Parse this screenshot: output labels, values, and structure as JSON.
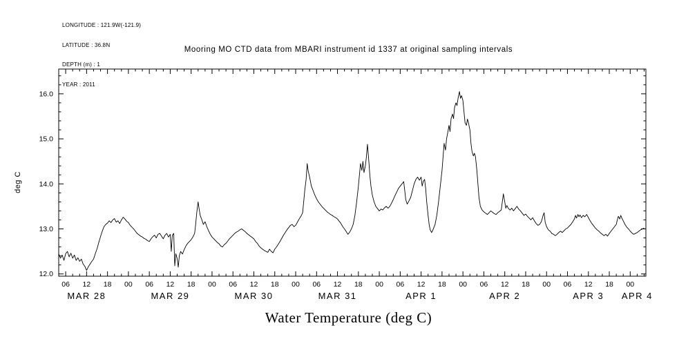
{
  "meta": {
    "longitude": "LONGITUDE : 121.9W(-121.9)",
    "latitude": "LATITUDE : 36.8N",
    "depth": "DEPTH (m) : 1",
    "year": "YEAR : 2011"
  },
  "title": "Mooring MO CTD data from MBARI instrument id 1337 at original sampling intervals",
  "caption": "Water Temperature (deg C)",
  "y_axis_label": "deg C",
  "chart_data": {
    "type": "line",
    "title": "Mooring MO CTD data from MBARI instrument id 1337 at original sampling intervals",
    "xlabel": "Water Temperature (deg C)",
    "ylabel": "deg C",
    "grid": false,
    "legend": "none",
    "line_color": "#000000",
    "x_units": "hours from MAR 28 00:00 (year 2011)",
    "xlim": [
      4,
      172.5
    ],
    "ylim": [
      11.95,
      16.55
    ],
    "y_ticks": [
      [
        12,
        "12.0"
      ],
      [
        13,
        "13.0"
      ],
      [
        14,
        "14.0"
      ],
      [
        15,
        "15.0"
      ],
      [
        16,
        "16.0"
      ]
    ],
    "x_ticks": [
      [
        6,
        "06"
      ],
      [
        12,
        "12"
      ],
      [
        18,
        "18"
      ],
      [
        24,
        "00"
      ],
      [
        30,
        "06"
      ],
      [
        36,
        "12"
      ],
      [
        42,
        "18"
      ],
      [
        48,
        "00"
      ],
      [
        54,
        "06"
      ],
      [
        60,
        "12"
      ],
      [
        66,
        "18"
      ],
      [
        72,
        "00"
      ],
      [
        78,
        "06"
      ],
      [
        84,
        "12"
      ],
      [
        90,
        "18"
      ],
      [
        96,
        "00"
      ],
      [
        102,
        "06"
      ],
      [
        108,
        "12"
      ],
      [
        114,
        "18"
      ],
      [
        120,
        "00"
      ],
      [
        126,
        "06"
      ],
      [
        132,
        "12"
      ],
      [
        138,
        "18"
      ],
      [
        144,
        "00"
      ],
      [
        150,
        "06"
      ],
      [
        156,
        "12"
      ],
      [
        162,
        "18"
      ],
      [
        168,
        "00"
      ]
    ],
    "day_labels": [
      [
        12,
        "MAR 28"
      ],
      [
        36,
        "MAR 29"
      ],
      [
        60,
        "MAR 30"
      ],
      [
        84,
        "MAR 31"
      ],
      [
        108,
        "APR 1"
      ],
      [
        132,
        "APR 2"
      ],
      [
        156,
        "APR 3"
      ],
      [
        170,
        "APR 4"
      ]
    ],
    "points": [
      [
        4,
        12.45
      ],
      [
        4.5,
        12.35
      ],
      [
        5,
        12.42
      ],
      [
        5.5,
        12.3
      ],
      [
        6,
        12.45
      ],
      [
        6.5,
        12.5
      ],
      [
        7,
        12.38
      ],
      [
        7.5,
        12.46
      ],
      [
        8,
        12.35
      ],
      [
        8.5,
        12.42
      ],
      [
        9,
        12.3
      ],
      [
        9.5,
        12.36
      ],
      [
        10,
        12.28
      ],
      [
        10.5,
        12.33
      ],
      [
        11,
        12.22
      ],
      [
        11.5,
        12.17
      ],
      [
        12,
        12.08
      ],
      [
        12.5,
        12.16
      ],
      [
        13,
        12.22
      ],
      [
        13.5,
        12.28
      ],
      [
        14,
        12.33
      ],
      [
        14.5,
        12.45
      ],
      [
        15,
        12.56
      ],
      [
        15.5,
        12.7
      ],
      [
        16,
        12.83
      ],
      [
        16.5,
        12.95
      ],
      [
        17,
        13.05
      ],
      [
        17.5,
        13.1
      ],
      [
        18,
        13.13
      ],
      [
        18.5,
        13.18
      ],
      [
        19,
        13.14
      ],
      [
        19.5,
        13.2
      ],
      [
        20,
        13.23
      ],
      [
        20.5,
        13.15
      ],
      [
        21,
        13.18
      ],
      [
        21.5,
        13.12
      ],
      [
        22,
        13.2
      ],
      [
        22.5,
        13.26
      ],
      [
        23,
        13.22
      ],
      [
        23.5,
        13.17
      ],
      [
        24,
        13.14
      ],
      [
        24.5,
        13.08
      ],
      [
        25,
        13.04
      ],
      [
        25.5,
        13.0
      ],
      [
        26,
        12.95
      ],
      [
        26.5,
        12.9
      ],
      [
        27,
        12.87
      ],
      [
        27.5,
        12.84
      ],
      [
        28,
        12.82
      ],
      [
        28.5,
        12.79
      ],
      [
        29,
        12.77
      ],
      [
        29.5,
        12.74
      ],
      [
        30,
        12.72
      ],
      [
        30.5,
        12.78
      ],
      [
        31,
        12.83
      ],
      [
        31.5,
        12.86
      ],
      [
        32,
        12.8
      ],
      [
        32.5,
        12.88
      ],
      [
        33,
        12.9
      ],
      [
        33.5,
        12.84
      ],
      [
        34,
        12.78
      ],
      [
        34.5,
        12.86
      ],
      [
        35,
        12.9
      ],
      [
        35.5,
        12.82
      ],
      [
        36,
        12.88
      ],
      [
        36.3,
        12.5
      ],
      [
        36.6,
        12.86
      ],
      [
        37,
        12.9
      ],
      [
        37.3,
        12.18
      ],
      [
        37.6,
        12.45
      ],
      [
        38,
        12.34
      ],
      [
        38.3,
        12.15
      ],
      [
        38.6,
        12.4
      ],
      [
        39,
        12.5
      ],
      [
        39.5,
        12.44
      ],
      [
        40,
        12.54
      ],
      [
        40.5,
        12.62
      ],
      [
        41,
        12.68
      ],
      [
        41.5,
        12.72
      ],
      [
        42,
        12.76
      ],
      [
        42.5,
        12.82
      ],
      [
        43,
        12.9
      ],
      [
        43.3,
        13.1
      ],
      [
        43.6,
        13.35
      ],
      [
        44,
        13.6
      ],
      [
        44.3,
        13.44
      ],
      [
        44.6,
        13.3
      ],
      [
        45,
        13.22
      ],
      [
        45.5,
        13.1
      ],
      [
        46,
        13.16
      ],
      [
        46.5,
        13.05
      ],
      [
        47,
        12.96
      ],
      [
        47.5,
        12.88
      ],
      [
        48,
        12.82
      ],
      [
        48.5,
        12.78
      ],
      [
        49,
        12.74
      ],
      [
        49.5,
        12.7
      ],
      [
        50,
        12.67
      ],
      [
        50.5,
        12.62
      ],
      [
        51,
        12.6
      ],
      [
        51.5,
        12.65
      ],
      [
        52,
        12.68
      ],
      [
        52.5,
        12.73
      ],
      [
        53,
        12.78
      ],
      [
        53.5,
        12.82
      ],
      [
        54,
        12.86
      ],
      [
        54.5,
        12.9
      ],
      [
        55,
        12.93
      ],
      [
        55.5,
        12.95
      ],
      [
        56,
        12.98
      ],
      [
        56.5,
        13.0
      ],
      [
        57,
        12.97
      ],
      [
        57.5,
        12.94
      ],
      [
        58,
        12.9
      ],
      [
        58.5,
        12.87
      ],
      [
        59,
        12.84
      ],
      [
        59.5,
        12.81
      ],
      [
        60,
        12.78
      ],
      [
        60.5,
        12.72
      ],
      [
        61,
        12.68
      ],
      [
        61.5,
        12.62
      ],
      [
        62,
        12.58
      ],
      [
        62.5,
        12.55
      ],
      [
        63,
        12.52
      ],
      [
        63.5,
        12.5
      ],
      [
        64,
        12.48
      ],
      [
        64.5,
        12.55
      ],
      [
        65,
        12.5
      ],
      [
        65.5,
        12.47
      ],
      [
        66,
        12.55
      ],
      [
        66.5,
        12.6
      ],
      [
        67,
        12.66
      ],
      [
        67.5,
        12.72
      ],
      [
        68,
        12.79
      ],
      [
        68.5,
        12.86
      ],
      [
        69,
        12.92
      ],
      [
        69.5,
        12.98
      ],
      [
        70,
        13.03
      ],
      [
        70.5,
        13.08
      ],
      [
        71,
        13.1
      ],
      [
        71.5,
        13.05
      ],
      [
        72,
        13.08
      ],
      [
        72.5,
        13.15
      ],
      [
        73,
        13.22
      ],
      [
        73.5,
        13.28
      ],
      [
        74,
        13.36
      ],
      [
        74.3,
        13.6
      ],
      [
        74.6,
        13.85
      ],
      [
        75,
        14.1
      ],
      [
        75.3,
        14.45
      ],
      [
        75.6,
        14.28
      ],
      [
        76,
        14.15
      ],
      [
        76.5,
        13.95
      ],
      [
        77,
        13.85
      ],
      [
        77.5,
        13.75
      ],
      [
        78,
        13.67
      ],
      [
        78.5,
        13.6
      ],
      [
        79,
        13.55
      ],
      [
        79.5,
        13.5
      ],
      [
        80,
        13.46
      ],
      [
        80.5,
        13.42
      ],
      [
        81,
        13.38
      ],
      [
        81.5,
        13.35
      ],
      [
        82,
        13.32
      ],
      [
        82.5,
        13.3
      ],
      [
        83,
        13.27
      ],
      [
        83.5,
        13.25
      ],
      [
        84,
        13.22
      ],
      [
        84.5,
        13.17
      ],
      [
        85,
        13.12
      ],
      [
        85.5,
        13.05
      ],
      [
        86,
        13.0
      ],
      [
        86.5,
        12.94
      ],
      [
        87,
        12.88
      ],
      [
        87.5,
        12.93
      ],
      [
        88,
        13.0
      ],
      [
        88.5,
        13.1
      ],
      [
        89,
        13.3
      ],
      [
        89.5,
        13.6
      ],
      [
        90,
        13.95
      ],
      [
        90.3,
        14.2
      ],
      [
        90.6,
        14.45
      ],
      [
        91,
        14.3
      ],
      [
        91.3,
        14.5
      ],
      [
        91.6,
        14.25
      ],
      [
        92,
        14.4
      ],
      [
        92.3,
        14.6
      ],
      [
        92.6,
        14.88
      ],
      [
        93,
        14.5
      ],
      [
        93.3,
        14.18
      ],
      [
        93.6,
        13.95
      ],
      [
        94,
        13.75
      ],
      [
        94.5,
        13.6
      ],
      [
        95,
        13.5
      ],
      [
        95.5,
        13.45
      ],
      [
        96,
        13.4
      ],
      [
        96.5,
        13.44
      ],
      [
        97,
        13.42
      ],
      [
        97.5,
        13.47
      ],
      [
        98,
        13.5
      ],
      [
        98.5,
        13.46
      ],
      [
        99,
        13.5
      ],
      [
        99.5,
        13.57
      ],
      [
        100,
        13.65
      ],
      [
        100.5,
        13.74
      ],
      [
        101,
        13.82
      ],
      [
        101.5,
        13.9
      ],
      [
        102,
        13.95
      ],
      [
        102.5,
        14.0
      ],
      [
        103,
        14.05
      ],
      [
        103.3,
        13.85
      ],
      [
        103.6,
        13.65
      ],
      [
        104,
        13.55
      ],
      [
        104.5,
        13.62
      ],
      [
        105,
        13.7
      ],
      [
        105.5,
        13.85
      ],
      [
        106,
        14.0
      ],
      [
        106.5,
        14.1
      ],
      [
        107,
        14.15
      ],
      [
        107.5,
        14.08
      ],
      [
        108,
        14.15
      ],
      [
        108.3,
        13.95
      ],
      [
        108.6,
        14.05
      ],
      [
        109,
        14.1
      ],
      [
        109.3,
        13.9
      ],
      [
        109.6,
        13.6
      ],
      [
        110,
        13.3
      ],
      [
        110.3,
        13.1
      ],
      [
        110.6,
        12.98
      ],
      [
        111,
        12.92
      ],
      [
        111.3,
        12.96
      ],
      [
        111.6,
        13.02
      ],
      [
        112,
        13.1
      ],
      [
        112.5,
        13.3
      ],
      [
        113,
        13.6
      ],
      [
        113.5,
        13.95
      ],
      [
        114,
        14.3
      ],
      [
        114.3,
        14.6
      ],
      [
        114.6,
        14.9
      ],
      [
        115,
        14.75
      ],
      [
        115.3,
        15.0
      ],
      [
        115.6,
        15.12
      ],
      [
        116,
        15.3
      ],
      [
        116.3,
        15.16
      ],
      [
        116.6,
        15.45
      ],
      [
        117,
        15.55
      ],
      [
        117.3,
        15.45
      ],
      [
        117.6,
        15.7
      ],
      [
        118,
        15.8
      ],
      [
        118.3,
        15.74
      ],
      [
        118.6,
        15.9
      ],
      [
        119,
        16.05
      ],
      [
        119.3,
        15.9
      ],
      [
        119.6,
        15.96
      ],
      [
        120,
        15.85
      ],
      [
        120.3,
        15.6
      ],
      [
        120.6,
        15.36
      ],
      [
        121,
        15.3
      ],
      [
        121.3,
        15.44
      ],
      [
        121.6,
        15.35
      ],
      [
        122,
        15.2
      ],
      [
        122.3,
        14.9
      ],
      [
        122.6,
        14.72
      ],
      [
        123,
        14.62
      ],
      [
        123.3,
        14.68
      ],
      [
        123.6,
        14.6
      ],
      [
        124,
        14.3
      ],
      [
        124.3,
        14.0
      ],
      [
        124.6,
        13.7
      ],
      [
        125,
        13.5
      ],
      [
        125.5,
        13.42
      ],
      [
        126,
        13.38
      ],
      [
        126.5,
        13.35
      ],
      [
        127,
        13.32
      ],
      [
        127.5,
        13.36
      ],
      [
        128,
        13.4
      ],
      [
        128.5,
        13.37
      ],
      [
        129,
        13.34
      ],
      [
        129.5,
        13.32
      ],
      [
        130,
        13.36
      ],
      [
        130.5,
        13.39
      ],
      [
        131,
        13.42
      ],
      [
        131.3,
        13.6
      ],
      [
        131.6,
        13.78
      ],
      [
        132,
        13.6
      ],
      [
        132.3,
        13.46
      ],
      [
        132.6,
        13.52
      ],
      [
        133,
        13.46
      ],
      [
        133.5,
        13.42
      ],
      [
        134,
        13.46
      ],
      [
        134.5,
        13.4
      ],
      [
        135,
        13.45
      ],
      [
        135.5,
        13.5
      ],
      [
        136,
        13.44
      ],
      [
        136.5,
        13.4
      ],
      [
        137,
        13.35
      ],
      [
        137.5,
        13.3
      ],
      [
        138,
        13.33
      ],
      [
        138.5,
        13.28
      ],
      [
        139,
        13.24
      ],
      [
        139.5,
        13.2
      ],
      [
        140,
        13.25
      ],
      [
        140.5,
        13.18
      ],
      [
        141,
        13.12
      ],
      [
        141.5,
        13.08
      ],
      [
        142,
        13.1
      ],
      [
        142.5,
        13.16
      ],
      [
        143,
        13.3
      ],
      [
        143.3,
        13.36
      ],
      [
        143.6,
        13.15
      ],
      [
        144,
        13.05
      ],
      [
        144.5,
        12.98
      ],
      [
        145,
        12.95
      ],
      [
        145.5,
        12.9
      ],
      [
        146,
        12.88
      ],
      [
        146.5,
        12.85
      ],
      [
        147,
        12.88
      ],
      [
        147.5,
        12.92
      ],
      [
        148,
        12.95
      ],
      [
        148.5,
        12.92
      ],
      [
        149,
        12.96
      ],
      [
        149.5,
        13.0
      ],
      [
        150,
        13.02
      ],
      [
        150.5,
        13.06
      ],
      [
        151,
        13.1
      ],
      [
        151.5,
        13.16
      ],
      [
        152,
        13.22
      ],
      [
        152.3,
        13.3
      ],
      [
        152.6,
        13.24
      ],
      [
        153,
        13.32
      ],
      [
        153.3,
        13.27
      ],
      [
        153.6,
        13.31
      ],
      [
        154,
        13.25
      ],
      [
        154.5,
        13.3
      ],
      [
        155,
        13.27
      ],
      [
        155.5,
        13.32
      ],
      [
        156,
        13.25
      ],
      [
        156.5,
        13.18
      ],
      [
        157,
        13.12
      ],
      [
        157.5,
        13.07
      ],
      [
        158,
        13.02
      ],
      [
        158.5,
        12.98
      ],
      [
        159,
        12.95
      ],
      [
        159.5,
        12.91
      ],
      [
        160,
        12.88
      ],
      [
        160.5,
        12.85
      ],
      [
        161,
        12.88
      ],
      [
        161.5,
        12.84
      ],
      [
        162,
        12.9
      ],
      [
        162.5,
        12.95
      ],
      [
        163,
        13.0
      ],
      [
        163.5,
        13.05
      ],
      [
        164,
        13.1
      ],
      [
        164.3,
        13.2
      ],
      [
        164.6,
        13.28
      ],
      [
        165,
        13.22
      ],
      [
        165.3,
        13.3
      ],
      [
        165.6,
        13.24
      ],
      [
        166,
        13.18
      ],
      [
        166.5,
        13.1
      ],
      [
        167,
        13.04
      ],
      [
        167.5,
        13.0
      ],
      [
        168,
        12.95
      ],
      [
        168.5,
        12.91
      ],
      [
        169,
        12.88
      ],
      [
        169.5,
        12.9
      ],
      [
        170,
        12.92
      ],
      [
        170.5,
        12.95
      ],
      [
        171,
        12.98
      ],
      [
        171.5,
        13.0
      ],
      [
        172,
        13.02
      ]
    ]
  }
}
